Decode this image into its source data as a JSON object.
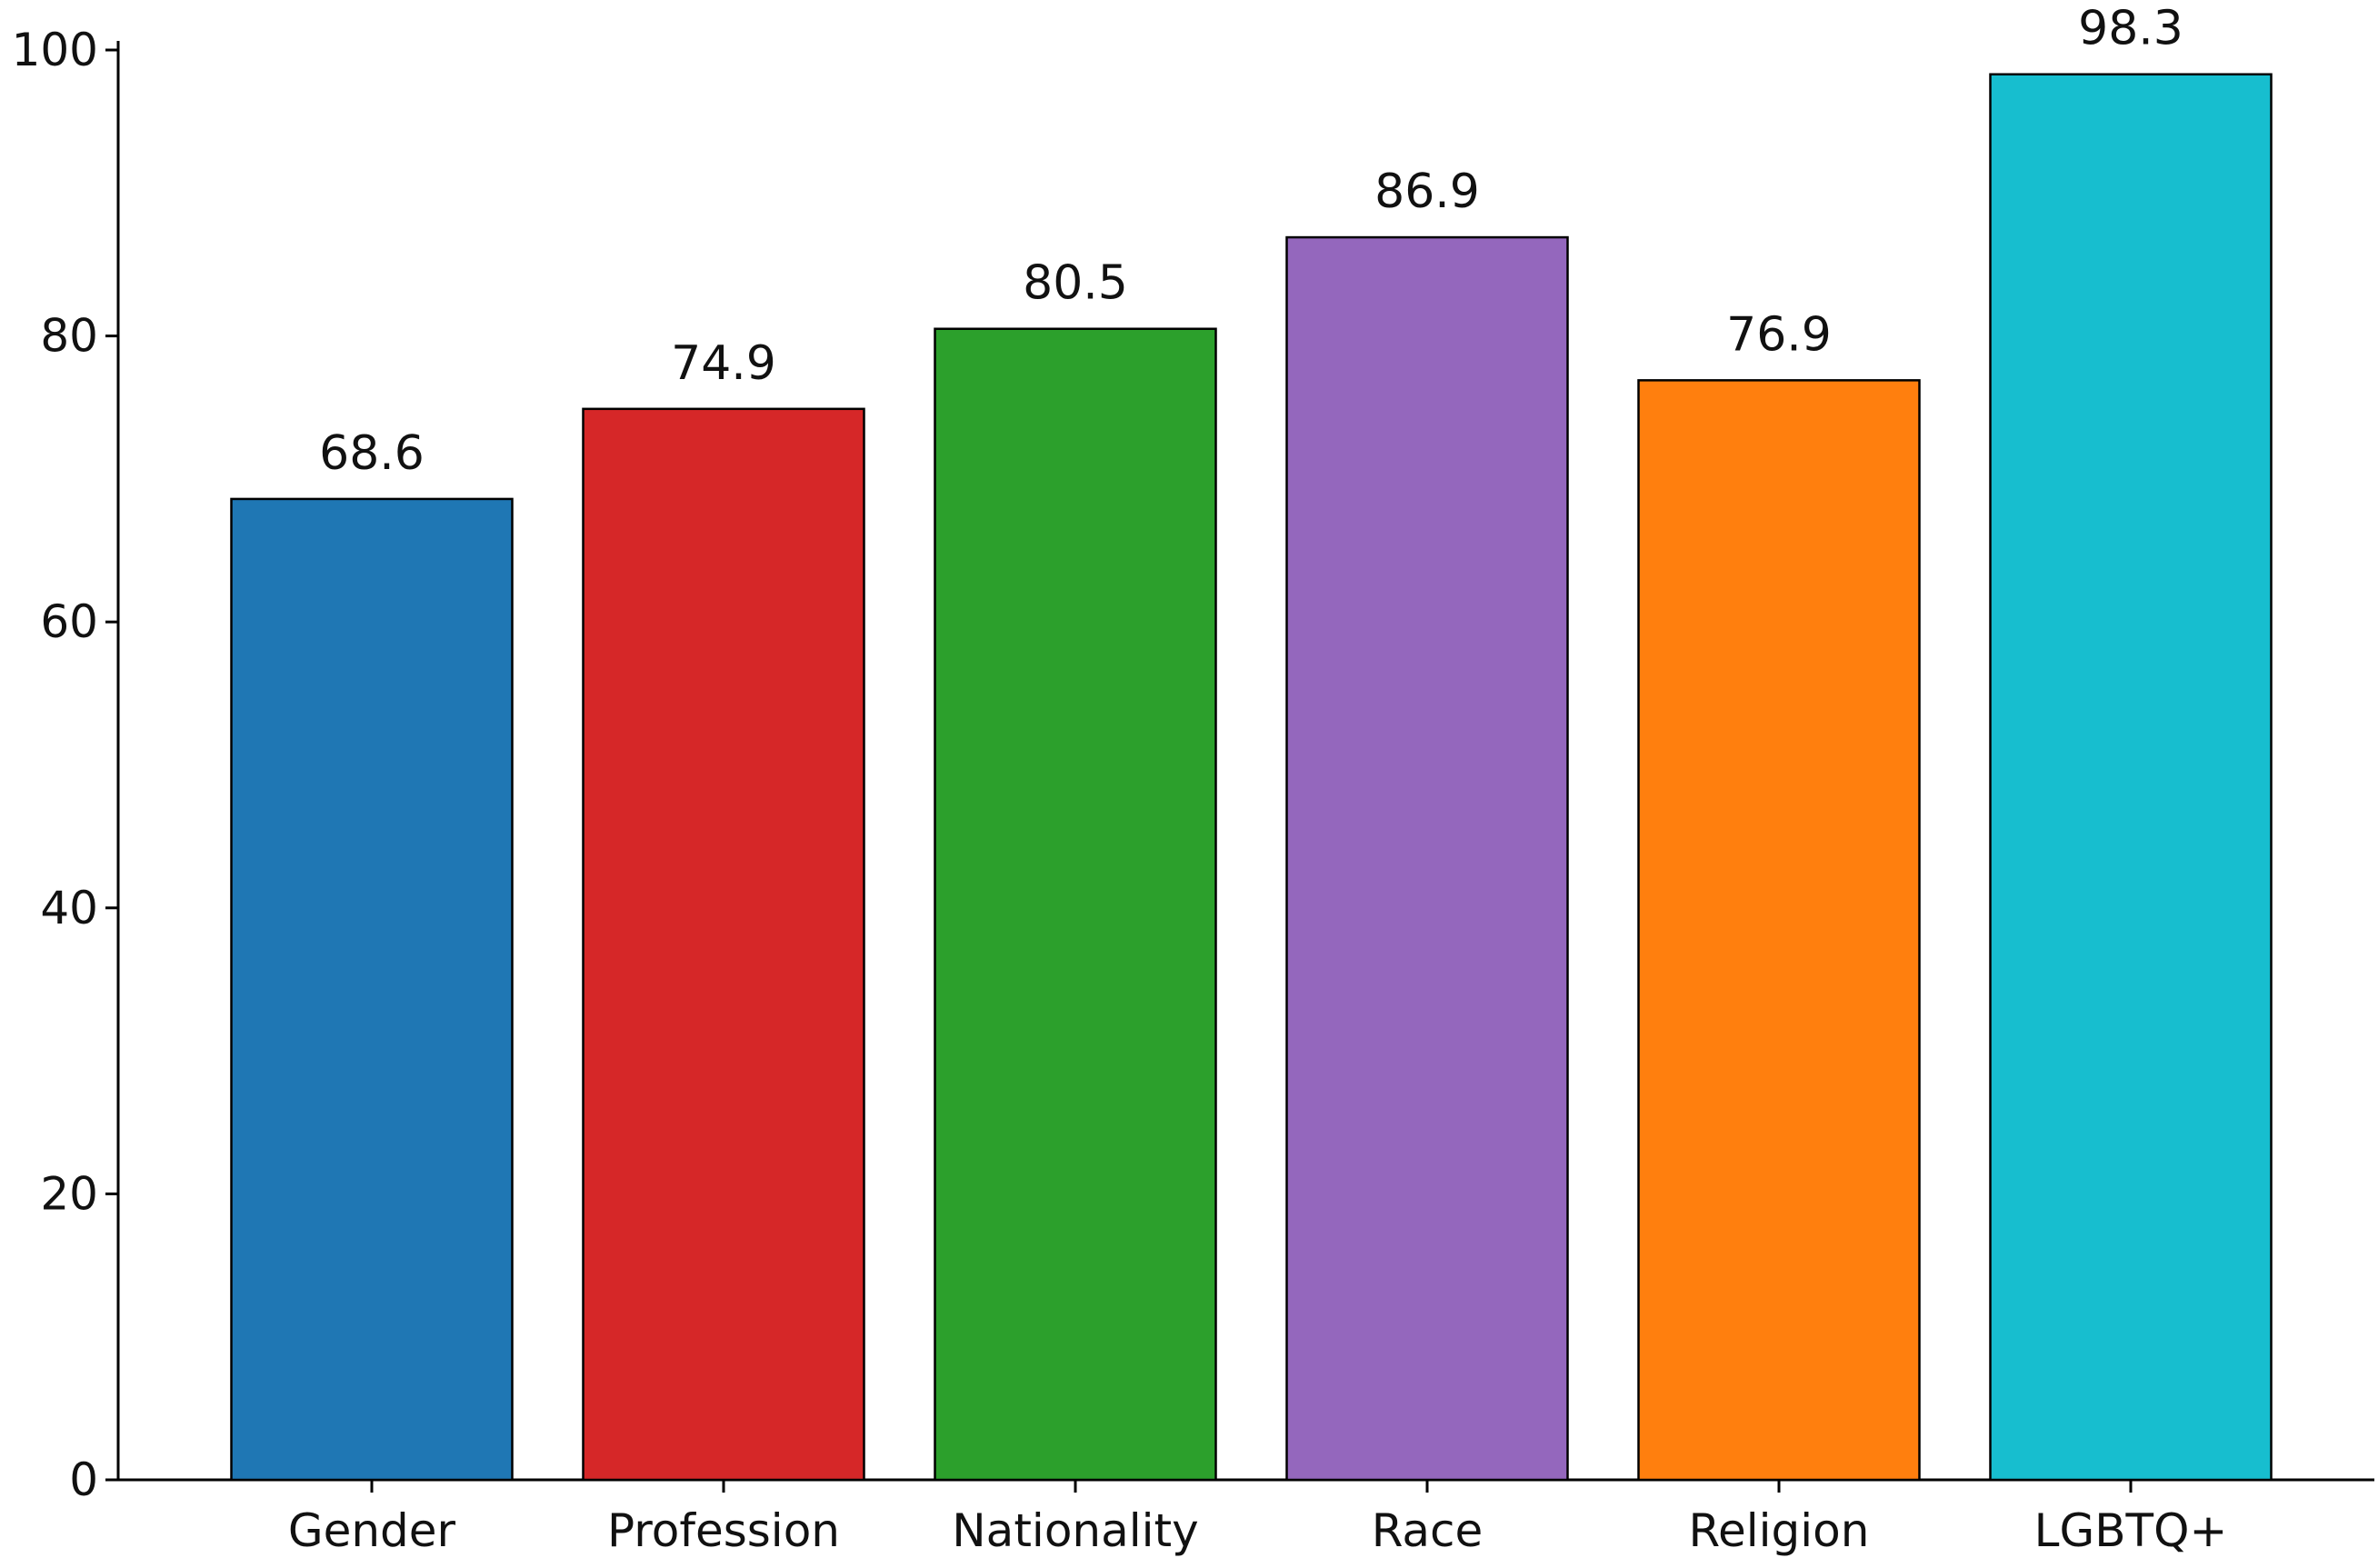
{
  "chart_data": {
    "type": "bar",
    "categories": [
      "Gender",
      "Profession",
      "Nationality",
      "Race",
      "Religion",
      "LGBTQ+"
    ],
    "values": [
      68.6,
      74.9,
      80.5,
      86.9,
      76.9,
      98.3
    ],
    "value_labels": [
      "68.6",
      "74.9",
      "80.5",
      "86.9",
      "76.9",
      "98.3"
    ],
    "colors": [
      "#1f77b4",
      "#d62728",
      "#2ca02c",
      "#9467bd",
      "#ff7f0e",
      "#17becf"
    ],
    "title": "",
    "xlabel": "",
    "ylabel": "",
    "ylim": [
      0,
      100
    ],
    "yticks": [
      0,
      20,
      40,
      60,
      80,
      100
    ],
    "grid": false,
    "legend": "none"
  }
}
